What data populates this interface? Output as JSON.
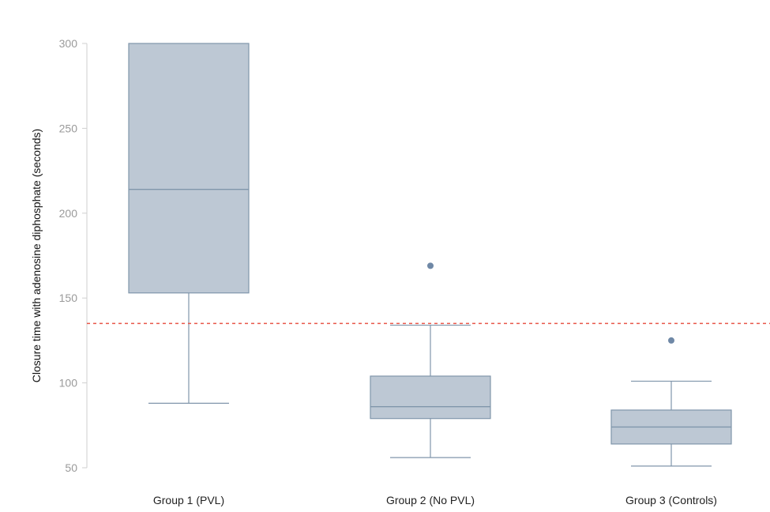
{
  "chart_data": {
    "type": "boxplot",
    "ylabel": "Closure time with adenosine diphosphate (seconds)",
    "xlabel": "",
    "ylim": [
      50,
      300
    ],
    "yticks": [
      50,
      100,
      150,
      200,
      250,
      300
    ],
    "categories": [
      "Group 1 (PVL)",
      "Group 2 (No PVL)",
      "Group 3 (Controls)"
    ],
    "boxes": [
      {
        "category": "Group 1 (PVL)",
        "whisker_low": 88,
        "q1": 153,
        "median": 214,
        "q3": 300,
        "whisker_high": 300,
        "outliers": []
      },
      {
        "category": "Group 2 (No PVL)",
        "whisker_low": 56,
        "q1": 79,
        "median": 86,
        "q3": 104,
        "whisker_high": 134,
        "outliers": [
          169
        ]
      },
      {
        "category": "Group 3 (Controls)",
        "whisker_low": 51,
        "q1": 64,
        "median": 74,
        "q3": 84,
        "whisker_high": 101,
        "outliers": [
          125
        ]
      }
    ],
    "reference_line": {
      "value": 135,
      "style": "dashed",
      "color": "#e8564a"
    },
    "colors": {
      "box_fill": "#bdc8d4",
      "box_stroke": "#8096ab",
      "outlier": "#6f88a6",
      "axis": "#cfcfcf"
    },
    "grid": false,
    "legend": "none"
  }
}
